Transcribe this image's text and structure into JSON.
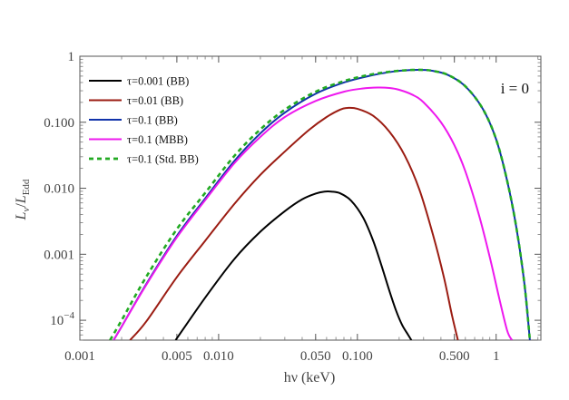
{
  "chart_data": {
    "type": "line",
    "title": "",
    "xlabel": "hν (keV)",
    "ylabel": "L_ν/L_Edd",
    "ylabel_main": "L",
    "ylabel_sub_nu": "ν",
    "ylabel_den": "L",
    "ylabel_sub_edd": "Edd",
    "annotation": "i = 0",
    "xscale": "log",
    "yscale": "log",
    "xlim": [
      0.001,
      2.1
    ],
    "ylim": [
      5e-05,
      1
    ],
    "x_ticks": [
      {
        "value": 0.001,
        "label": "0.001"
      },
      {
        "value": 0.005,
        "label": "0.005"
      },
      {
        "value": 0.01,
        "label": "0.010"
      },
      {
        "value": 0.05,
        "label": "0.050"
      },
      {
        "value": 0.1,
        "label": "0.100"
      },
      {
        "value": 0.5,
        "label": "0.500"
      },
      {
        "value": 1,
        "label": "1"
      }
    ],
    "y_ticks": [
      {
        "value": 1,
        "label": "1"
      },
      {
        "value": 0.1,
        "label": "0.100"
      },
      {
        "value": 0.01,
        "label": "0.010"
      },
      {
        "value": 0.001,
        "label": "0.001"
      }
    ],
    "y_tick_special": {
      "value": 0.0001,
      "label_base": "10",
      "label_exp": "−4"
    },
    "legend_position": "top-left",
    "series": [
      {
        "name": "τ=0.001 (BB)",
        "color": "#000000",
        "dashed": false,
        "x": [
          0.0049,
          0.008,
          0.013,
          0.02,
          0.03,
          0.04,
          0.05,
          0.058,
          0.065,
          0.075,
          0.09,
          0.11,
          0.13,
          0.15,
          0.17,
          0.19,
          0.21,
          0.23,
          0.245
        ],
        "y": [
          5e-05,
          0.00022,
          0.00085,
          0.0022,
          0.0045,
          0.0068,
          0.0083,
          0.0089,
          0.0089,
          0.0084,
          0.0065,
          0.0036,
          0.0016,
          0.00065,
          0.00028,
          0.00014,
          8.5e-05,
          6.2e-05,
          5e-05
        ]
      },
      {
        "name": "τ=0.01 (BB)",
        "color": "#9b1c12",
        "dashed": false,
        "x": [
          0.0023,
          0.003,
          0.005,
          0.008,
          0.013,
          0.02,
          0.03,
          0.045,
          0.06,
          0.075,
          0.085,
          0.1,
          0.13,
          0.17,
          0.22,
          0.28,
          0.35,
          0.42,
          0.48,
          0.53
        ],
        "y": [
          5e-05,
          9.5e-05,
          0.00045,
          0.0016,
          0.0058,
          0.016,
          0.036,
          0.077,
          0.12,
          0.155,
          0.165,
          0.16,
          0.125,
          0.072,
          0.031,
          0.0095,
          0.002,
          0.00045,
          0.00012,
          5e-05
        ]
      },
      {
        "name": "τ=0.1 (BB)",
        "color": "#1133aa",
        "dashed": false,
        "x": [
          0.00175,
          0.002,
          0.003,
          0.005,
          0.008,
          0.013,
          0.02,
          0.03,
          0.05,
          0.08,
          0.12,
          0.18,
          0.25,
          0.3,
          0.35,
          0.45,
          0.6,
          0.8,
          1.0,
          1.2,
          1.4,
          1.6,
          1.75
        ],
        "y": [
          5e-05,
          8e-05,
          0.00035,
          0.0019,
          0.007,
          0.026,
          0.068,
          0.14,
          0.27,
          0.4,
          0.5,
          0.585,
          0.62,
          0.62,
          0.6,
          0.52,
          0.35,
          0.16,
          0.055,
          0.013,
          0.0025,
          0.00035,
          5e-05
        ]
      },
      {
        "name": "τ=0.1 (MBB)",
        "color": "#ee18ee",
        "dashed": false,
        "x": [
          0.00175,
          0.002,
          0.003,
          0.005,
          0.008,
          0.013,
          0.02,
          0.03,
          0.05,
          0.08,
          0.11,
          0.14,
          0.17,
          0.2,
          0.25,
          0.3,
          0.4,
          0.5,
          0.6,
          0.75,
          0.9,
          1.05,
          1.2,
          1.3
        ],
        "y": [
          5e-05,
          8e-05,
          0.00034,
          0.0018,
          0.0066,
          0.024,
          0.06,
          0.12,
          0.21,
          0.29,
          0.325,
          0.335,
          0.33,
          0.31,
          0.26,
          0.2,
          0.1,
          0.045,
          0.018,
          0.004,
          0.0009,
          0.00022,
          7e-05,
          5e-05
        ]
      },
      {
        "name": "τ=0.1 (Std. BB)",
        "color": "#22aa22",
        "dashed": true,
        "x": [
          0.00165,
          0.002,
          0.003,
          0.005,
          0.008,
          0.013,
          0.02,
          0.03,
          0.05,
          0.08,
          0.12,
          0.18,
          0.25,
          0.3,
          0.35,
          0.45,
          0.6,
          0.8,
          1.0,
          1.2,
          1.4,
          1.6,
          1.75
        ],
        "y": [
          5e-05,
          0.0001,
          0.00045,
          0.0024,
          0.0085,
          0.031,
          0.078,
          0.155,
          0.29,
          0.42,
          0.52,
          0.59,
          0.62,
          0.62,
          0.6,
          0.52,
          0.35,
          0.16,
          0.055,
          0.013,
          0.0025,
          0.00035,
          5e-05
        ]
      }
    ]
  }
}
